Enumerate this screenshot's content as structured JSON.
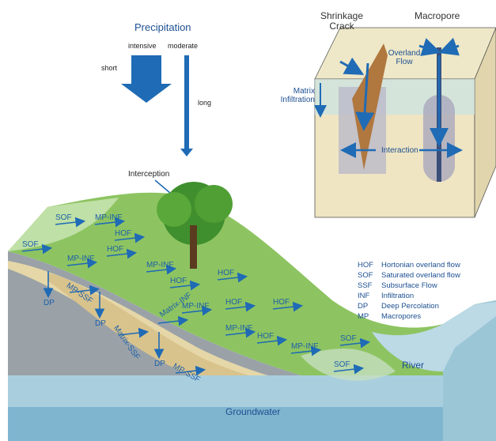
{
  "precipitation": {
    "title": "Precipitation",
    "intensive": "intensive",
    "moderate": "moderate",
    "short": "short",
    "long": "long"
  },
  "interception": "Interception",
  "inset": {
    "shrinkage_crack": "Shrinkage Crack",
    "macropore": "Macropore",
    "overland_flow": "Overland Flow",
    "matrix_infiltration": "Matrix Infiltration",
    "interaction": "Interaction"
  },
  "flow_labels": [
    "SOF",
    "MP-INF",
    "HOF",
    "SOF",
    "MP-INF",
    "HOF",
    "MP-INF",
    "HOF",
    "HOF",
    "MP-INF",
    "HOF",
    "HOF",
    "MP-INF",
    "HOF",
    "MP-INF",
    "SOF",
    "SOF",
    "DP",
    "DP",
    "DP",
    "MP-SSF",
    "Matrix-SSF",
    "MP-SSF",
    "Matrix-INF"
  ],
  "river": "River",
  "groundwater": "Groundwater",
  "legend": [
    [
      "HOF",
      "Hortonian overland flow"
    ],
    [
      "SOF",
      "Saturated overland flow"
    ],
    [
      "SSF",
      "Subsurface Flow"
    ],
    [
      "INF",
      "Infiltration"
    ],
    [
      "DP",
      "Deep Percolation"
    ],
    [
      "MP",
      "Macropores"
    ]
  ]
}
